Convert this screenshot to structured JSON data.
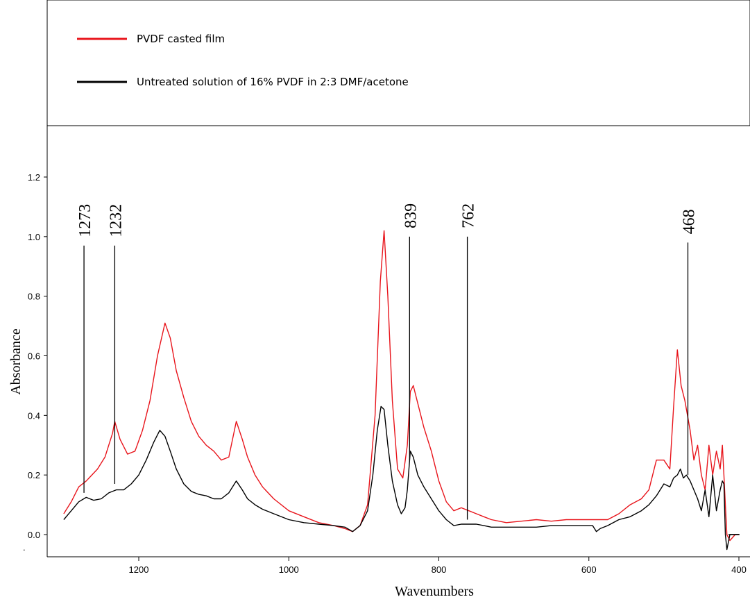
{
  "chart_data": {
    "type": "line",
    "title": "",
    "xlabel": "Wavenumbers",
    "ylabel": "Absorbance",
    "xlim": [
      1310,
      395
    ],
    "ylim": [
      -0.07,
      1.32
    ],
    "x_ticks": [
      1200,
      1000,
      800,
      600,
      400
    ],
    "x_tick_labels": [
      "1200",
      "1000",
      "800",
      "600",
      "400"
    ],
    "y_ticks": [
      0.0,
      0.2,
      0.4,
      0.6,
      0.8,
      1.0,
      1.2
    ],
    "y_tick_labels": [
      "0.0",
      "0.2",
      "0.4",
      "0.6",
      "0.8",
      "1.0",
      "1.2"
    ],
    "grid": false,
    "legend_position": "top-left",
    "series": [
      {
        "name": "PVDF casted film",
        "color": "#e8141b",
        "x": [
          1300,
          1290,
          1280,
          1270,
          1255,
          1245,
          1235,
          1232,
          1225,
          1215,
          1205,
          1195,
          1185,
          1175,
          1165,
          1158,
          1150,
          1140,
          1130,
          1120,
          1110,
          1100,
          1090,
          1080,
          1070,
          1062,
          1055,
          1045,
          1035,
          1020,
          1000,
          980,
          960,
          940,
          925,
          915,
          905,
          895,
          885,
          878,
          873,
          868,
          862,
          855,
          848,
          842,
          838,
          834,
          828,
          820,
          810,
          800,
          790,
          780,
          770,
          760,
          750,
          740,
          730,
          710,
          690,
          670,
          650,
          630,
          610,
          590,
          575,
          560,
          545,
          530,
          520,
          510,
          500,
          492,
          487,
          482,
          477,
          472,
          465,
          460,
          455,
          450,
          445,
          440,
          435,
          430,
          425,
          422,
          420,
          418,
          416,
          412,
          405,
          400
        ],
        "y": [
          0.07,
          0.11,
          0.16,
          0.18,
          0.22,
          0.26,
          0.34,
          0.38,
          0.32,
          0.27,
          0.28,
          0.35,
          0.45,
          0.6,
          0.71,
          0.66,
          0.55,
          0.46,
          0.38,
          0.33,
          0.3,
          0.28,
          0.25,
          0.26,
          0.38,
          0.32,
          0.26,
          0.2,
          0.16,
          0.12,
          0.08,
          0.06,
          0.04,
          0.03,
          0.02,
          0.01,
          0.03,
          0.1,
          0.4,
          0.85,
          1.02,
          0.8,
          0.45,
          0.22,
          0.19,
          0.3,
          0.48,
          0.5,
          0.44,
          0.36,
          0.28,
          0.18,
          0.11,
          0.08,
          0.09,
          0.08,
          0.07,
          0.06,
          0.05,
          0.04,
          0.045,
          0.05,
          0.045,
          0.05,
          0.05,
          0.05,
          0.05,
          0.07,
          0.1,
          0.12,
          0.15,
          0.25,
          0.25,
          0.22,
          0.43,
          0.62,
          0.5,
          0.45,
          0.35,
          0.25,
          0.3,
          0.2,
          0.15,
          0.3,
          0.2,
          0.28,
          0.22,
          0.3,
          0.2,
          0.1,
          0.0,
          -0.02,
          0.0,
          0.0
        ]
      },
      {
        "name": "Untreated solution of 16% PVDF in 2:3 DMF/acetone",
        "color": "#000000",
        "x": [
          1300,
          1290,
          1280,
          1270,
          1260,
          1250,
          1240,
          1230,
          1220,
          1210,
          1200,
          1190,
          1180,
          1172,
          1165,
          1158,
          1150,
          1140,
          1130,
          1120,
          1110,
          1100,
          1090,
          1080,
          1070,
          1062,
          1055,
          1045,
          1035,
          1020,
          1000,
          980,
          960,
          940,
          925,
          915,
          905,
          895,
          888,
          882,
          877,
          873,
          868,
          862,
          855,
          850,
          845,
          842,
          838,
          834,
          828,
          820,
          810,
          800,
          790,
          780,
          770,
          760,
          750,
          740,
          730,
          710,
          690,
          670,
          650,
          630,
          610,
          595,
          590,
          585,
          575,
          560,
          545,
          530,
          520,
          510,
          500,
          492,
          487,
          482,
          478,
          474,
          470,
          465,
          460,
          455,
          450,
          445,
          440,
          435,
          430,
          425,
          422,
          420,
          418,
          416,
          412,
          405,
          400
        ],
        "y": [
          0.05,
          0.08,
          0.11,
          0.125,
          0.115,
          0.12,
          0.14,
          0.15,
          0.15,
          0.17,
          0.2,
          0.25,
          0.31,
          0.35,
          0.33,
          0.28,
          0.22,
          0.17,
          0.145,
          0.135,
          0.13,
          0.12,
          0.12,
          0.14,
          0.18,
          0.15,
          0.12,
          0.1,
          0.085,
          0.07,
          0.05,
          0.04,
          0.035,
          0.03,
          0.025,
          0.01,
          0.03,
          0.08,
          0.2,
          0.35,
          0.43,
          0.42,
          0.3,
          0.18,
          0.1,
          0.07,
          0.09,
          0.15,
          0.28,
          0.26,
          0.2,
          0.16,
          0.12,
          0.08,
          0.05,
          0.03,
          0.035,
          0.035,
          0.035,
          0.03,
          0.025,
          0.025,
          0.025,
          0.025,
          0.03,
          0.03,
          0.03,
          0.03,
          0.01,
          0.02,
          0.03,
          0.05,
          0.06,
          0.08,
          0.1,
          0.13,
          0.17,
          0.16,
          0.19,
          0.2,
          0.22,
          0.19,
          0.2,
          0.18,
          0.15,
          0.12,
          0.08,
          0.15,
          0.06,
          0.2,
          0.08,
          0.15,
          0.18,
          0.17,
          0.0,
          -0.05,
          0.0,
          0.0,
          0.0
        ]
      }
    ],
    "annotations": [
      {
        "label": "1273",
        "x": 1273,
        "line_top_y": 0.97,
        "line_bottom_y": 0.14
      },
      {
        "label": "1232",
        "x": 1232,
        "line_top_y": 0.97,
        "line_bottom_y": 0.17
      },
      {
        "label": "839",
        "x": 839,
        "line_top_y": 1.0,
        "line_bottom_y": 0.25
      },
      {
        "label": "762",
        "x": 762,
        "line_top_y": 1.0,
        "line_bottom_y": 0.05
      },
      {
        "label": "468",
        "x": 468,
        "line_top_y": 0.98,
        "line_bottom_y": 0.2
      }
    ]
  }
}
